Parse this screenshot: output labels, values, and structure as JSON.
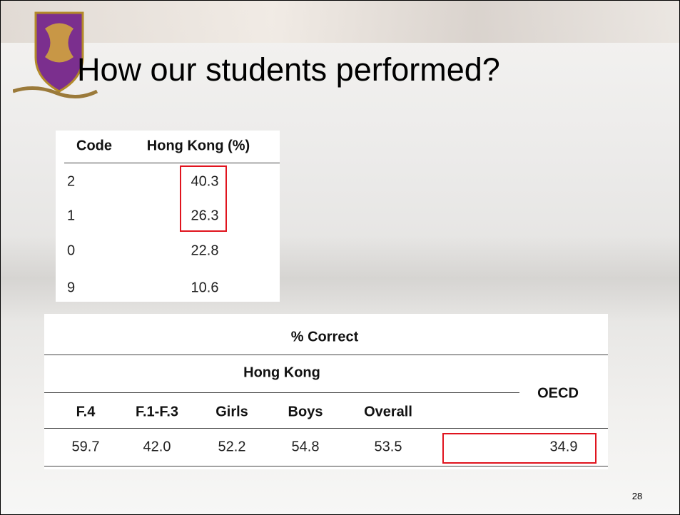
{
  "title": "How our students performed?",
  "code_table": {
    "header": [
      "Code",
      "Hong Kong (%)"
    ],
    "rows": [
      [
        "2",
        "40.3"
      ],
      [
        "1",
        "26.3"
      ],
      [
        "0",
        "22.8"
      ],
      [
        "9",
        "10.6"
      ]
    ]
  },
  "correct_table": {
    "header": "% Correct",
    "group_header": "Hong Kong",
    "oecd_header": "OECD",
    "columns": [
      "F.4",
      "F.1-F.3",
      "Girls",
      "Boys",
      "Overall"
    ],
    "values": [
      "59.7",
      "42.0",
      "52.2",
      "54.8",
      "53.5",
      "34.9"
    ]
  },
  "page_number": "28"
}
